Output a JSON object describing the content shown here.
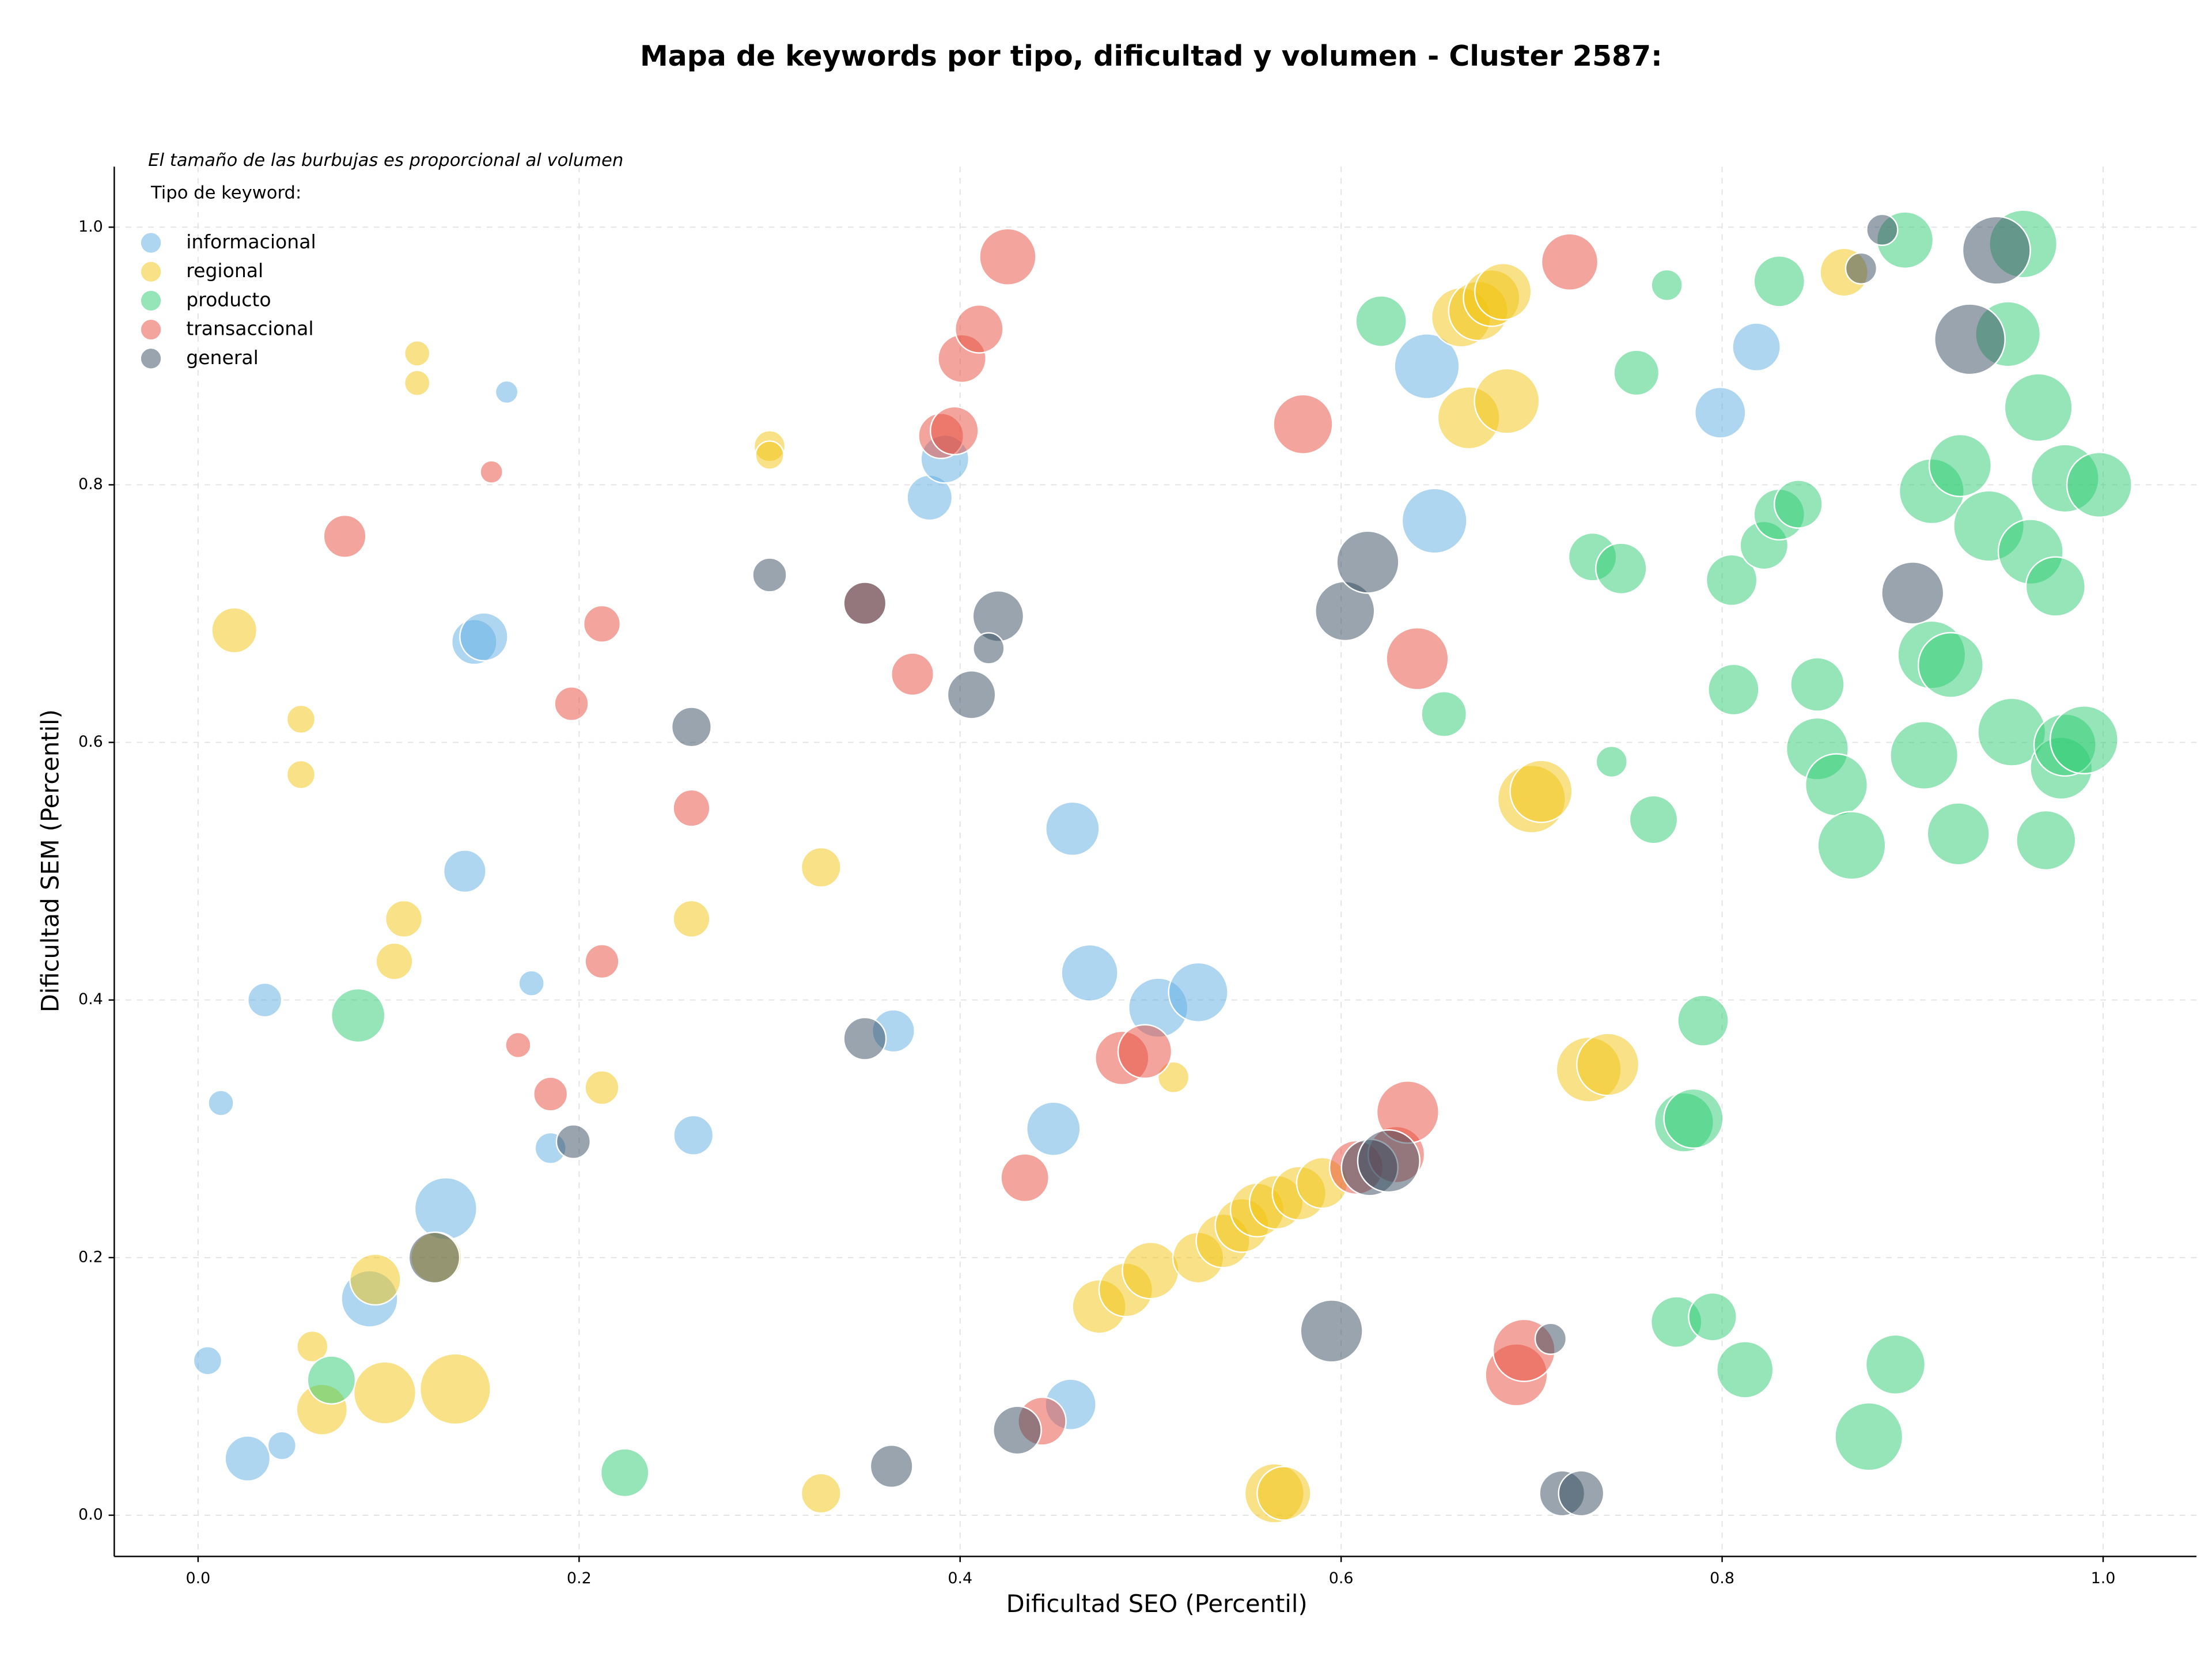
{
  "chart_data": {
    "type": "bubble",
    "title": "Mapa de keywords por tipo, dificultad y volumen - Cluster 2587:",
    "annotation": "El tamaño de las burbujas es proporcional al volumen",
    "legend_title": "Tipo de keyword:",
    "legend_position": "upper left",
    "x_label": "Dificultad SEO (Percentil)",
    "y_label": "Dificultad SEM (Percentil)",
    "xlim": [
      -0.044,
      1.049
    ],
    "ylim": [
      -0.032,
      1.047
    ],
    "xticks": [
      {
        "value": 0,
        "label": "0.0"
      },
      0.2,
      0.4,
      0.6,
      0.8,
      {
        "value": 1,
        "label": "1.0"
      }
    ],
    "yticks": [
      {
        "value": 0,
        "label": "0.0"
      },
      0.2,
      0.4,
      0.6,
      0.8,
      {
        "value": 1,
        "label": "1.0"
      }
    ],
    "grid": true,
    "series": [
      {
        "name": "informacional",
        "color": "#5dade2",
        "x": [
          0.005,
          0.012,
          0.026,
          0.044,
          0.035,
          0.14,
          0.145,
          0.15,
          0.162,
          0.175,
          0.185,
          0.13,
          0.09,
          0.26,
          0.365,
          0.384,
          0.392,
          0.459,
          0.468,
          0.504,
          0.525,
          0.449,
          0.458,
          0.645,
          0.649,
          0.799,
          0.818
        ],
        "y": [
          0.12,
          0.32,
          0.044,
          0.054,
          0.4,
          0.5,
          0.678,
          0.682,
          0.872,
          0.413,
          0.285,
          0.238,
          0.168,
          0.295,
          0.376,
          0.79,
          0.82,
          0.533,
          0.421,
          0.394,
          0.406,
          0.3,
          0.086,
          0.892,
          0.772,
          0.856,
          0.907
        ],
        "size": [
          100,
          81,
          256,
          100,
          144,
          225,
          256,
          289,
          64,
          81,
          121,
          484,
          400,
          196,
          225,
          256,
          289,
          361,
          400,
          441,
          441,
          361,
          324,
          529,
          529,
          324,
          289
        ]
      },
      {
        "name": "regional",
        "color": "#f1c40f",
        "x": [
          0.019,
          0.115,
          0.115,
          0.054,
          0.054,
          0.108,
          0.103,
          0.212,
          0.06,
          0.065,
          0.093,
          0.098,
          0.135,
          0.3,
          0.3,
          0.327,
          0.259,
          0.512,
          0.327,
          0.473,
          0.487,
          0.5,
          0.525,
          0.538,
          0.548,
          0.556,
          0.566,
          0.578,
          0.59,
          0.565,
          0.57,
          0.667,
          0.687,
          0.663,
          0.672,
          0.679,
          0.685,
          0.7,
          0.705,
          0.73,
          0.74,
          0.864,
          0.125
        ],
        "y": [
          0.687,
          0.902,
          0.879,
          0.618,
          0.575,
          0.463,
          0.43,
          0.332,
          0.131,
          0.082,
          0.183,
          0.095,
          0.098,
          0.83,
          0.823,
          0.503,
          0.463,
          0.34,
          0.017,
          0.162,
          0.175,
          0.19,
          0.2,
          0.213,
          0.225,
          0.237,
          0.243,
          0.25,
          0.258,
          0.017,
          0.017,
          0.852,
          0.865,
          0.93,
          0.935,
          0.945,
          0.95,
          0.556,
          0.562,
          0.346,
          0.35,
          0.965,
          0.2
        ],
        "size": [
          256,
          81,
          81,
          100,
          100,
          169,
          169,
          144,
          121,
          324,
          324,
          484,
          625,
          121,
          100,
          196,
          169,
          121,
          196,
          361,
          361,
          400,
          324,
          361,
          361,
          361,
          361,
          361,
          324,
          441,
          361,
          484,
          529,
          441,
          441,
          400,
          400,
          576,
          484,
          529,
          484,
          289,
          324
        ]
      },
      {
        "name": "producto",
        "color": "#2ecc71",
        "x": [
          0.07,
          0.084,
          0.224,
          0.621,
          0.654,
          0.742,
          0.732,
          0.747,
          0.755,
          0.771,
          0.764,
          0.79,
          0.78,
          0.785,
          0.776,
          0.795,
          0.812,
          0.805,
          0.806,
          0.83,
          0.822,
          0.83,
          0.84,
          0.85,
          0.85,
          0.86,
          0.868,
          0.877,
          0.891,
          0.896,
          0.91,
          0.925,
          0.94,
          0.962,
          0.966,
          0.906,
          0.924,
          0.91,
          0.92,
          0.95,
          0.958,
          0.952,
          0.97,
          0.978,
          0.98,
          0.99,
          0.98,
          0.998,
          0.975
        ],
        "y": [
          0.105,
          0.388,
          0.033,
          0.927,
          0.622,
          0.585,
          0.744,
          0.735,
          0.887,
          0.955,
          0.54,
          0.384,
          0.305,
          0.308,
          0.15,
          0.154,
          0.113,
          0.726,
          0.641,
          0.958,
          0.753,
          0.777,
          0.785,
          0.645,
          0.595,
          0.567,
          0.52,
          0.061,
          0.117,
          0.99,
          0.795,
          0.815,
          0.768,
          0.748,
          0.86,
          0.59,
          0.529,
          0.668,
          0.66,
          0.917,
          0.987,
          0.608,
          0.524,
          0.58,
          0.598,
          0.602,
          0.805,
          0.8,
          0.721
        ],
        "size": [
          289,
          361,
          289,
          324,
          256,
          121,
          289,
          324,
          256,
          121,
          289,
          324,
          441,
          441,
          324,
          289,
          400,
          324,
          324,
          324,
          289,
          324,
          289,
          361,
          484,
          484,
          576,
          576,
          441,
          400,
          529,
          484,
          625,
          529,
          576,
          576,
          484,
          576,
          529,
          529,
          576,
          576,
          441,
          484,
          484,
          576,
          576,
          529,
          441
        ]
      },
      {
        "name": "transaccional",
        "color": "#e74c3c",
        "x": [
          0.077,
          0.154,
          0.168,
          0.185,
          0.196,
          0.212,
          0.212,
          0.259,
          0.35,
          0.375,
          0.39,
          0.397,
          0.401,
          0.41,
          0.425,
          0.434,
          0.443,
          0.485,
          0.497,
          0.58,
          0.608,
          0.629,
          0.635,
          0.64,
          0.692,
          0.696,
          0.72
        ],
        "y": [
          0.76,
          0.81,
          0.365,
          0.327,
          0.63,
          0.692,
          0.43,
          0.549,
          0.708,
          0.653,
          0.838,
          0.842,
          0.898,
          0.921,
          0.977,
          0.262,
          0.073,
          0.355,
          0.36,
          0.847,
          0.27,
          0.28,
          0.313,
          0.665,
          0.109,
          0.128,
          0.973
        ],
        "size": [
          225,
          64,
          81,
          144,
          144,
          169,
          144,
          169,
          225,
          225,
          256,
          289,
          289,
          289,
          400,
          289,
          289,
          361,
          361,
          441,
          361,
          400,
          484,
          484,
          484,
          484,
          400
        ]
      },
      {
        "name": "general",
        "color": "#34495e",
        "x": [
          0.124,
          0.197,
          0.259,
          0.3,
          0.35,
          0.35,
          0.364,
          0.406,
          0.42,
          0.415,
          0.43,
          0.595,
          0.602,
          0.614,
          0.615,
          0.625,
          0.716,
          0.726,
          0.71,
          0.9,
          0.873,
          0.884,
          0.93,
          0.944
        ],
        "y": [
          0.2,
          0.29,
          0.612,
          0.73,
          0.708,
          0.37,
          0.038,
          0.637,
          0.698,
          0.673,
          0.066,
          0.143,
          0.702,
          0.74,
          0.27,
          0.275,
          0.017,
          0.017,
          0.137,
          0.716,
          0.968,
          0.998,
          0.913,
          0.982
        ],
        "size": [
          324,
          144,
          196,
          144,
          225,
          225,
          225,
          289,
          324,
          121,
          289,
          484,
          441,
          484,
          400,
          484,
          256,
          256,
          121,
          484,
          121,
          121,
          625,
          576
        ]
      }
    ]
  }
}
